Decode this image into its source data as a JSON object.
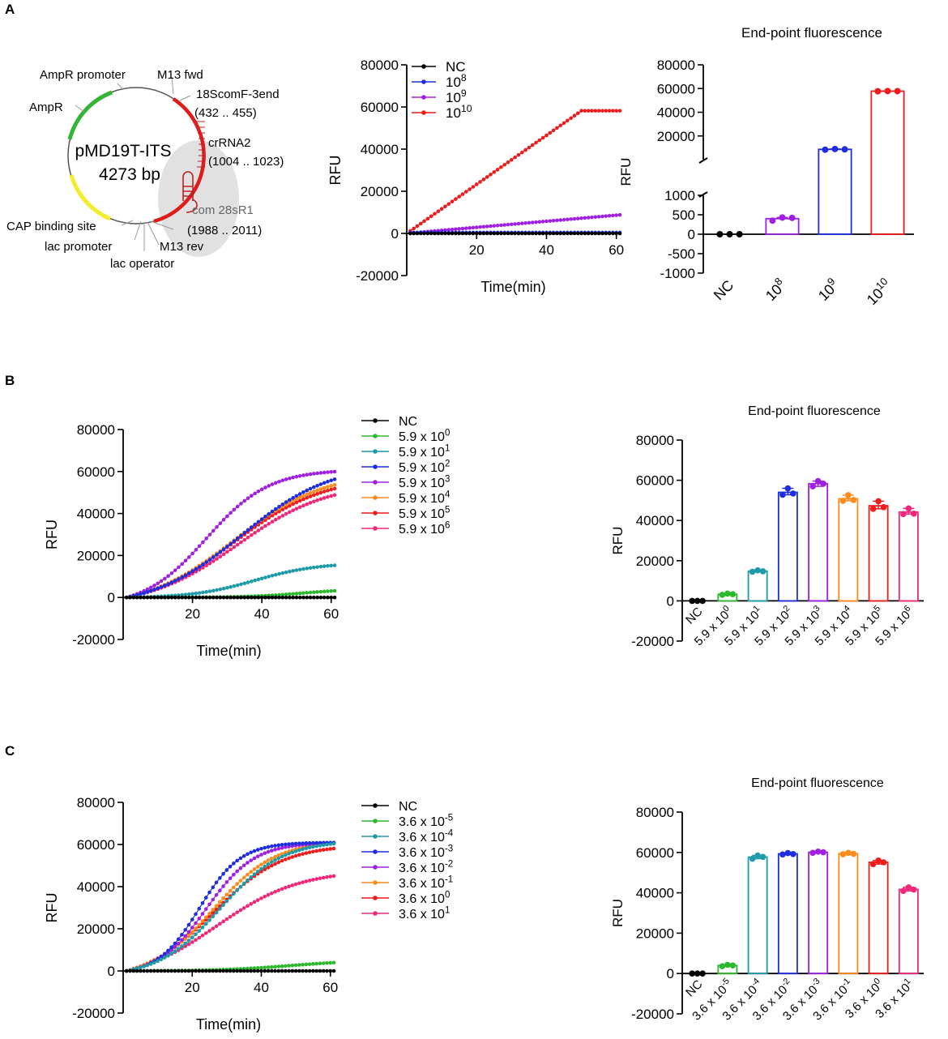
{
  "panels": {
    "a": "A",
    "b": "B",
    "c": "C"
  },
  "colors": {
    "black": "#000000",
    "green": "#2db82d",
    "teal": "#1f9aa8",
    "blue": "#1f2de0",
    "purple": "#a020e0",
    "orange": "#ff8c1a",
    "red": "#ee1c1c",
    "pink": "#f0287a",
    "gray": "#d9d9d9",
    "yellow": "#f2ee2c"
  },
  "plasmid": {
    "name": "pMD19T-ITS",
    "size": "4273 bp",
    "labels": {
      "ampr_promoter": "AmpR promoter",
      "m13_fwd": "M13 fwd",
      "f18scom": "18ScomF-3end",
      "f18scom_range": "(432 .. 455)",
      "ampr": "AmpR",
      "crrna2": "crRNA2",
      "crrna2_range": "(1004 .. 1023)",
      "com28": "com 28sR1",
      "com28_range": "(1988 .. 2011)",
      "cap": "CAP binding site",
      "lac_promoter": "lac promoter",
      "m13_rev": "M13 rev",
      "lac_operator": "lac operator"
    }
  },
  "chart_data": [
    {
      "id": "A-line",
      "type": "line",
      "xlabel": "Time(min)",
      "ylabel": "RFU",
      "xlim": [
        0,
        61
      ],
      "ylim": [
        -20000,
        80000
      ],
      "xticks": [
        20,
        40,
        60
      ],
      "yticks": [
        -20000,
        0,
        20000,
        40000,
        60000,
        80000
      ],
      "ytick_labels": [
        "-20000",
        "0",
        "20000",
        "40000",
        "60000",
        "80000"
      ],
      "series": [
        {
          "name": "NC",
          "color": "#000000",
          "model": "flat",
          "plateau": 0
        },
        {
          "name": "10",
          "sup": "8",
          "color": "#1f2de0",
          "model": "flat",
          "plateau": 400
        },
        {
          "name": "10",
          "sup": "9",
          "color": "#a020e0",
          "model": "linear",
          "plateau": 8800
        },
        {
          "name": "10",
          "sup": "10",
          "color": "#ee1c1c",
          "model": "ramp",
          "plateau": 58200,
          "knee": 50
        }
      ]
    },
    {
      "id": "A-bar",
      "type": "bar",
      "title": "End-point fluorescence",
      "ylabel": "RFU",
      "axis_break": {
        "lower": [
          -1000,
          1000
        ],
        "upper": [
          0,
          80000
        ]
      },
      "lower_ticks": [
        -1000,
        -500,
        0,
        500,
        1000
      ],
      "lower_tick_labels": [
        "-1000",
        "-500",
        "0",
        "500",
        "1000"
      ],
      "upper_ticks": [
        20000,
        40000,
        60000,
        80000
      ],
      "upper_tick_labels": [
        "20000",
        "40000",
        "60000",
        "80000"
      ],
      "categories": [
        {
          "base": "NC",
          "sup": ""
        },
        {
          "base": "10",
          "sup": "8"
        },
        {
          "base": "10",
          "sup": "9"
        },
        {
          "base": "10",
          "sup": "10"
        }
      ],
      "values": [
        0,
        400,
        8700,
        57800
      ],
      "points": [
        [
          0,
          0,
          0
        ],
        [
          350,
          430,
          420
        ],
        [
          8400,
          9000,
          8700
        ],
        [
          57700,
          57900,
          57800
        ]
      ],
      "colors": [
        "#000000",
        "#a020e0",
        "#1f2de0",
        "#ee1c1c"
      ]
    },
    {
      "id": "B-line",
      "type": "line",
      "xlabel": "Time(min)",
      "ylabel": "RFU",
      "xlim": [
        0,
        61
      ],
      "ylim": [
        -20000,
        80000
      ],
      "xticks": [
        20,
        40,
        60
      ],
      "yticks": [
        -20000,
        0,
        20000,
        40000,
        60000,
        80000
      ],
      "ytick_labels": [
        "-20000",
        "0",
        "20000",
        "40000",
        "60000",
        "80000"
      ],
      "series": [
        {
          "name": "NC",
          "color": "#000000",
          "model": "flat",
          "plateau": 0
        },
        {
          "name": "5.9 x 10",
          "sup": "0",
          "color": "#2db82d",
          "model": "sig",
          "plateau": 4200,
          "mid": 52,
          "w": 8
        },
        {
          "name": "5.9 x 10",
          "sup": "1",
          "color": "#1f9aa8",
          "model": "sig",
          "plateau": 16500,
          "mid": 38,
          "w": 9
        },
        {
          "name": "5.9 x 10",
          "sup": "2",
          "color": "#1f2de0",
          "model": "sig",
          "plateau": 64000,
          "mid": 34,
          "w": 13
        },
        {
          "name": "5.9 x 10",
          "sup": "3",
          "color": "#a020e0",
          "model": "sig",
          "plateau": 61000,
          "mid": 24,
          "w": 9
        },
        {
          "name": "5.9 x 10",
          "sup": "4",
          "color": "#ff8c1a",
          "model": "sig",
          "plateau": 60000,
          "mid": 32,
          "w": 13
        },
        {
          "name": "5.9 x 10",
          "sup": "5",
          "color": "#ee1c1c",
          "model": "sig",
          "plateau": 58000,
          "mid": 32,
          "w": 13
        },
        {
          "name": "5.9 x 10",
          "sup": "6",
          "color": "#f0287a",
          "model": "sig",
          "plateau": 55000,
          "mid": 33,
          "w": 13
        }
      ]
    },
    {
      "id": "B-bar",
      "type": "bar",
      "title": "End-point fluorescence",
      "ylabel": "RFU",
      "ylim": [
        -20000,
        80000
      ],
      "yticks": [
        -20000,
        0,
        20000,
        40000,
        60000,
        80000
      ],
      "ytick_labels": [
        "-20000",
        "0",
        "20000",
        "40000",
        "60000",
        "80000"
      ],
      "categories": [
        {
          "base": "NC",
          "sup": ""
        },
        {
          "base": "5.9 x 10",
          "sup": "0"
        },
        {
          "base": "5.9 x 10",
          "sup": "1"
        },
        {
          "base": "5.9 x 10",
          "sup": "2"
        },
        {
          "base": "5.9 x 10",
          "sup": "3"
        },
        {
          "base": "5.9 x 10",
          "sup": "4"
        },
        {
          "base": "5.9 x 10",
          "sup": "5"
        },
        {
          "base": "5.9 x 10",
          "sup": "6"
        }
      ],
      "values": [
        0,
        3300,
        14800,
        54000,
        58300,
        50800,
        47300,
        44200
      ],
      "points": [
        [
          0,
          0,
          0
        ],
        [
          3000,
          3600,
          3300
        ],
        [
          14500,
          15200,
          14700
        ],
        [
          52800,
          56000,
          53400
        ],
        [
          57000,
          59600,
          58300
        ],
        [
          49800,
          52600,
          50200
        ],
        [
          45800,
          49600,
          46600
        ],
        [
          43200,
          46000,
          43400
        ]
      ],
      "colors": [
        "#000000",
        "#2db82d",
        "#1f9aa8",
        "#1f2de0",
        "#a020e0",
        "#ff8c1a",
        "#ee1c1c",
        "#f0287a"
      ]
    },
    {
      "id": "C-line",
      "type": "line",
      "xlabel": "Time(min)",
      "ylabel": "RFU",
      "xlim": [
        0,
        61
      ],
      "ylim": [
        -20000,
        80000
      ],
      "xticks": [
        20,
        40,
        60
      ],
      "yticks": [
        -20000,
        0,
        20000,
        40000,
        60000,
        80000
      ],
      "ytick_labels": [
        "-20000",
        "0",
        "20000",
        "40000",
        "60000",
        "80000"
      ],
      "series": [
        {
          "name": "NC",
          "color": "#000000",
          "model": "flat",
          "plateau": 0
        },
        {
          "name": "3.6 x 10",
          "sup": "-5",
          "color": "#2db82d",
          "model": "sig",
          "plateau": 5000,
          "mid": 48,
          "w": 10
        },
        {
          "name": "3.6 x 10",
          "sup": "-4",
          "color": "#1f9aa8",
          "model": "sig",
          "plateau": 62000,
          "mid": 28,
          "w": 9
        },
        {
          "name": "3.6 x 10",
          "sup": "-3",
          "color": "#1f2de0",
          "model": "sig",
          "plateau": 61000,
          "mid": 22,
          "w": 6
        },
        {
          "name": "3.6 x 10",
          "sup": "-2",
          "color": "#a020e0",
          "model": "sig",
          "plateau": 61000,
          "mid": 24,
          "w": 7
        },
        {
          "name": "3.6 x 10",
          "sup": "-1",
          "color": "#ff8c1a",
          "model": "sig",
          "plateau": 62000,
          "mid": 26,
          "w": 9
        },
        {
          "name": "3.6 x 10",
          "sup": "0",
          "color": "#ee1c1c",
          "model": "sig",
          "plateau": 60000,
          "mid": 26,
          "w": 10
        },
        {
          "name": "3.6 x 10",
          "sup": "1",
          "color": "#f0287a",
          "model": "sig",
          "plateau": 48000,
          "mid": 27,
          "w": 12
        }
      ]
    },
    {
      "id": "C-bar",
      "type": "bar",
      "title": "End-point fluorescence",
      "ylabel": "RFU",
      "ylim": [
        -20000,
        80000
      ],
      "yticks": [
        -20000,
        0,
        20000,
        40000,
        60000,
        80000
      ],
      "ytick_labels": [
        "-20000",
        "0",
        "20000",
        "40000",
        "60000",
        "80000"
      ],
      "categories": [
        {
          "base": "NC",
          "sup": ""
        },
        {
          "base": "3.6 x 10",
          "sup": "-5"
        },
        {
          "base": "3.6 x 10",
          "sup": "-4"
        },
        {
          "base": "3.6 x 10",
          "sup": "-2"
        },
        {
          "base": "3.6 x 10",
          "sup": "-3"
        },
        {
          "base": "3.6 x 10",
          "sup": "-1"
        },
        {
          "base": "3.6 x 10",
          "sup": "0"
        },
        {
          "base": "3.6 x 10",
          "sup": "1"
        }
      ],
      "values": [
        0,
        4000,
        57700,
        59300,
        60100,
        59400,
        55100,
        41700
      ],
      "points": [
        [
          0,
          0,
          0
        ],
        [
          3600,
          4300,
          4000
        ],
        [
          56900,
          58500,
          57800
        ],
        [
          59000,
          59700,
          59200
        ],
        [
          59800,
          60400,
          60100
        ],
        [
          59100,
          59800,
          59300
        ],
        [
          54200,
          56000,
          55100
        ],
        [
          40900,
          42700,
          41600
        ]
      ],
      "colors": [
        "#000000",
        "#2db82d",
        "#1f9aa8",
        "#1f2de0",
        "#a020e0",
        "#ff8c1a",
        "#ee1c1c",
        "#f0287a"
      ]
    }
  ]
}
